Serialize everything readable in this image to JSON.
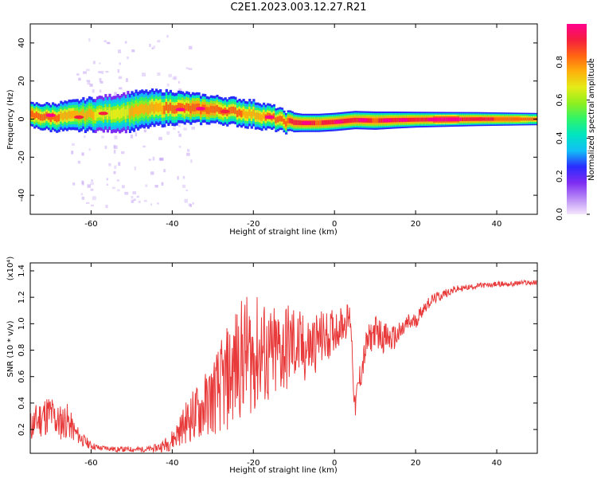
{
  "title": "C2E1.2023.003.12.27.R21",
  "colors": {
    "snr_line": "#e83a3a",
    "background": "#ffffff",
    "axis": "#000000",
    "halo": "#c7a8f4",
    "colormap": [
      "#f4e6fc",
      "#b98af6",
      "#7d2cf2",
      "#2a2cff",
      "#11bff6",
      "#00e4c2",
      "#2ef46a",
      "#8fef1e",
      "#e4ec18",
      "#fdb00b",
      "#ff6412",
      "#f51e3e",
      "#ff008c"
    ]
  },
  "colorbar": {
    "label": "Normalized spectral amplitude",
    "ticks": [
      "0.0",
      "0.2",
      "0.4",
      "0.6",
      "0.8"
    ]
  },
  "chart_data": [
    {
      "type": "heatmap",
      "title": "C2E1.2023.003.12.27.R21",
      "xlabel": "Height of straight line (km)",
      "ylabel": "Frequency (Hz)",
      "xlim": [
        -75,
        50
      ],
      "ylim": [
        -50,
        50
      ],
      "x_ticks": [
        "-60",
        "-40",
        "-20",
        "0",
        "20",
        "40"
      ],
      "y_ticks": [
        "40",
        "20",
        "0",
        "-20",
        "-40"
      ],
      "colorbar_range": [
        0,
        1
      ],
      "ridge": [
        {
          "x": -75,
          "f": 2.0,
          "w": 4.0,
          "amp": 0.85
        },
        {
          "x": -70,
          "f": 1.0,
          "w": 4.5,
          "amp": 0.8
        },
        {
          "x": -65,
          "f": 1.5,
          "w": 5.0,
          "amp": 0.75
        },
        {
          "x": -60,
          "f": 2.5,
          "w": 5.5,
          "amp": 0.7
        },
        {
          "x": -55,
          "f": 3.0,
          "w": 6.0,
          "amp": 0.65
        },
        {
          "x": -50,
          "f": 4.0,
          "w": 6.5,
          "amp": 0.7
        },
        {
          "x": -45,
          "f": 5.5,
          "w": 6.0,
          "amp": 0.75
        },
        {
          "x": -40,
          "f": 6.0,
          "w": 5.5,
          "amp": 0.8
        },
        {
          "x": -35,
          "f": 5.5,
          "w": 5.0,
          "amp": 0.85
        },
        {
          "x": -30,
          "f": 5.0,
          "w": 4.5,
          "amp": 0.85
        },
        {
          "x": -25,
          "f": 4.0,
          "w": 4.5,
          "amp": 0.8
        },
        {
          "x": -20,
          "f": 2.5,
          "w": 4.5,
          "amp": 0.75
        },
        {
          "x": -15,
          "f": 0.5,
          "w": 4.0,
          "amp": 0.8
        },
        {
          "x": -12,
          "f": -1.5,
          "w": 3.5,
          "amp": 0.85
        },
        {
          "x": -8,
          "f": -2.0,
          "w": 3.0,
          "amp": 0.9
        },
        {
          "x": -4,
          "f": -2.0,
          "w": 3.0,
          "amp": 0.85
        },
        {
          "x": 0,
          "f": -1.5,
          "w": 3.0,
          "amp": 0.9
        },
        {
          "x": 5,
          "f": -0.5,
          "w": 3.0,
          "amp": 0.9
        },
        {
          "x": 10,
          "f": -0.8,
          "w": 3.0,
          "amp": 0.85
        },
        {
          "x": 15,
          "f": -0.5,
          "w": 2.8,
          "amp": 0.9
        },
        {
          "x": 20,
          "f": -0.3,
          "w": 2.6,
          "amp": 0.9
        },
        {
          "x": 25,
          "f": -0.2,
          "w": 2.5,
          "amp": 0.95
        },
        {
          "x": 30,
          "f": -0.1,
          "w": 2.4,
          "amp": 0.95
        },
        {
          "x": 35,
          "f": 0.0,
          "w": 2.3,
          "amp": 0.9
        },
        {
          "x": 40,
          "f": 0.0,
          "w": 2.2,
          "amp": 0.85
        },
        {
          "x": 45,
          "f": 0.0,
          "w": 2.1,
          "amp": 0.85
        },
        {
          "x": 50,
          "f": 0.0,
          "w": 2.0,
          "amp": 0.8
        }
      ],
      "hotspots": [
        {
          "x": -70,
          "f": 2,
          "amp": 1.0
        },
        {
          "x": -63,
          "f": 1,
          "amp": 0.95
        },
        {
          "x": -57,
          "f": 3,
          "amp": 0.9
        },
        {
          "x": -38,
          "f": 5,
          "amp": 1.0
        },
        {
          "x": -33,
          "f": 5.5,
          "amp": 1.0
        },
        {
          "x": -27,
          "f": 4,
          "amp": 0.95
        },
        {
          "x": -16,
          "f": 1,
          "amp": 1.0
        },
        {
          "x": -7,
          "f": -2,
          "amp": 1.0
        },
        {
          "x": 1,
          "f": -1.5,
          "amp": 1.0
        },
        {
          "x": 7,
          "f": -0.5,
          "amp": 1.0
        },
        {
          "x": 13,
          "f": -0.7,
          "amp": 1.0
        },
        {
          "x": 17,
          "f": -0.5,
          "amp": 1.0
        },
        {
          "x": 24,
          "f": -0.2,
          "amp": 1.0
        },
        {
          "x": 29,
          "f": -0.1,
          "amp": 1.0
        },
        {
          "x": 36,
          "f": 0,
          "amp": 0.9
        }
      ]
    },
    {
      "type": "line",
      "xlabel": "Height of straight line (km)",
      "ylabel": "SNR (10 * v/v)",
      "y_multiplier": "(x10⁴)",
      "xlim": [
        -75,
        50
      ],
      "ylim": [
        0.02,
        1.46
      ],
      "x_ticks": [
        "-60",
        "-40",
        "-20",
        "0",
        "20",
        "40"
      ],
      "y_ticks": [
        "1.4",
        "1.2",
        "1.0",
        "0.8",
        "0.6",
        "0.4",
        "0.2"
      ],
      "series": [
        {
          "x": [
            -75,
            -72,
            -70,
            -68,
            -66,
            -64,
            -62,
            -60,
            -58,
            -56,
            -54,
            -52,
            -50,
            -48,
            -46,
            -44,
            -42,
            -40,
            -38,
            -36,
            -34,
            -32,
            -30,
            -28,
            -26,
            -24,
            -22,
            -20,
            -18,
            -16,
            -14,
            -12,
            -10,
            -8,
            -6,
            -4,
            -2,
            0,
            2,
            4,
            5,
            6,
            8,
            10,
            12,
            14,
            16,
            18,
            20,
            22,
            24,
            26,
            28,
            30,
            32,
            34,
            36,
            38,
            40,
            42,
            44,
            46,
            48,
            50
          ],
          "y": [
            0.22,
            0.3,
            0.32,
            0.25,
            0.27,
            0.18,
            0.12,
            0.08,
            0.06,
            0.06,
            0.05,
            0.05,
            0.05,
            0.05,
            0.05,
            0.06,
            0.08,
            0.12,
            0.2,
            0.28,
            0.32,
            0.38,
            0.45,
            0.52,
            0.6,
            0.7,
            0.78,
            0.75,
            0.8,
            0.72,
            0.78,
            0.82,
            0.85,
            0.8,
            0.82,
            0.88,
            0.9,
            0.95,
            1.0,
            1.05,
            0.35,
            0.55,
            0.85,
            0.95,
            0.9,
            0.88,
            0.92,
            1.0,
            1.02,
            1.12,
            1.18,
            1.21,
            1.24,
            1.26,
            1.27,
            1.28,
            1.29,
            1.29,
            1.3,
            1.3,
            1.3,
            1.31,
            1.31,
            1.31
          ],
          "noise": [
            0.12,
            0.16,
            0.16,
            0.14,
            0.14,
            0.08,
            0.05,
            0.03,
            0.02,
            0.02,
            0.02,
            0.02,
            0.02,
            0.02,
            0.02,
            0.03,
            0.05,
            0.08,
            0.12,
            0.18,
            0.22,
            0.25,
            0.3,
            0.35,
            0.42,
            0.45,
            0.45,
            0.45,
            0.42,
            0.4,
            0.38,
            0.36,
            0.32,
            0.28,
            0.26,
            0.22,
            0.2,
            0.16,
            0.14,
            0.12,
            0.1,
            0.12,
            0.12,
            0.12,
            0.12,
            0.1,
            0.09,
            0.08,
            0.06,
            0.05,
            0.04,
            0.04,
            0.03,
            0.03,
            0.02,
            0.02,
            0.02,
            0.02,
            0.02,
            0.02,
            0.02,
            0.02,
            0.02,
            0.02
          ]
        }
      ]
    }
  ]
}
